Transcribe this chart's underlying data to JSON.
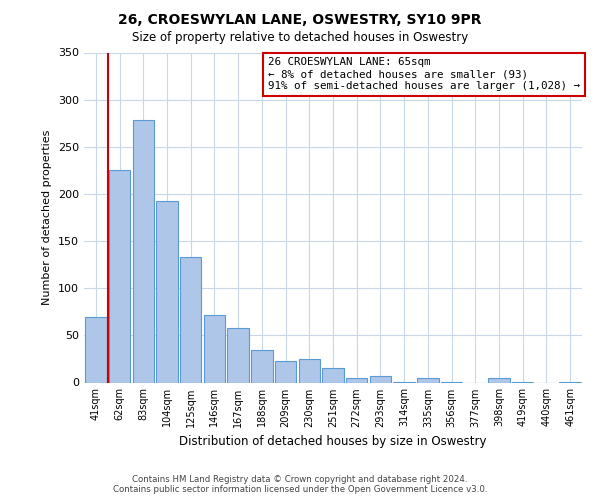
{
  "title": "26, CROESWYLAN LANE, OSWESTRY, SY10 9PR",
  "subtitle": "Size of property relative to detached houses in Oswestry",
  "xlabel": "Distribution of detached houses by size in Oswestry",
  "ylabel": "Number of detached properties",
  "bar_labels": [
    "41sqm",
    "62sqm",
    "83sqm",
    "104sqm",
    "125sqm",
    "146sqm",
    "167sqm",
    "188sqm",
    "209sqm",
    "230sqm",
    "251sqm",
    "272sqm",
    "293sqm",
    "314sqm",
    "335sqm",
    "356sqm",
    "377sqm",
    "398sqm",
    "419sqm",
    "440sqm",
    "461sqm"
  ],
  "bar_values": [
    70,
    225,
    278,
    193,
    133,
    72,
    58,
    34,
    23,
    25,
    15,
    5,
    7,
    1,
    5,
    1,
    0,
    5,
    1,
    0,
    1
  ],
  "bar_color": "#aec6e8",
  "bar_edge_color": "#5b9bd5",
  "vline_x": 0.5,
  "vline_color": "#cc0000",
  "annotation_text": "26 CROESWYLAN LANE: 65sqm\n← 8% of detached houses are smaller (93)\n91% of semi-detached houses are larger (1,028) →",
  "annotation_box_color": "#ffffff",
  "annotation_box_edge": "#cc0000",
  "ylim": [
    0,
    350
  ],
  "yticks": [
    0,
    50,
    100,
    150,
    200,
    250,
    300,
    350
  ],
  "footer1": "Contains HM Land Registry data © Crown copyright and database right 2024.",
  "footer2": "Contains public sector information licensed under the Open Government Licence v3.0.",
  "background_color": "#ffffff",
  "grid_color": "#c8d8e8"
}
